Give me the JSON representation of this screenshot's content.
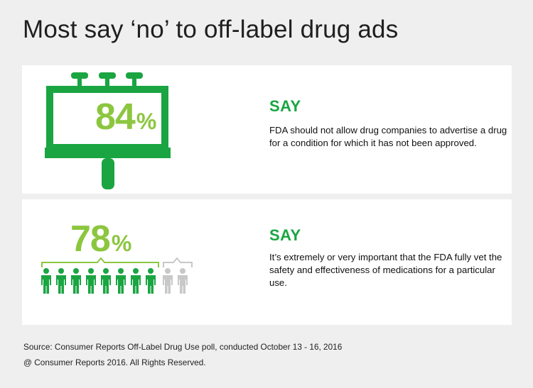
{
  "title": "Most say ‘no’ to off-label drug ads",
  "colors": {
    "green": "#1aa542",
    "lime": "#8cc63f",
    "grey": "#c8c8c8"
  },
  "stats": [
    {
      "value": 84,
      "unit": "%",
      "say_label": "SAY",
      "description": "FDA should not allow drug companies to advertise a drug for a condition for which it has not been approved.",
      "icon": "billboard-icon"
    },
    {
      "value": 78,
      "unit": "%",
      "say_label": "SAY",
      "description": "It’s extremely or very important that the FDA fully vet the safety and effectiveness of medications for a particular use.",
      "icon": "people-icon",
      "people_highlighted": 8,
      "people_total": 10
    }
  ],
  "source": "Source: Consumer Reports Off-Label Drug Use poll, conducted  October 13 - 16, 2016",
  "copyright": "@ Consumer Reports 2016. All Rights Reserved."
}
